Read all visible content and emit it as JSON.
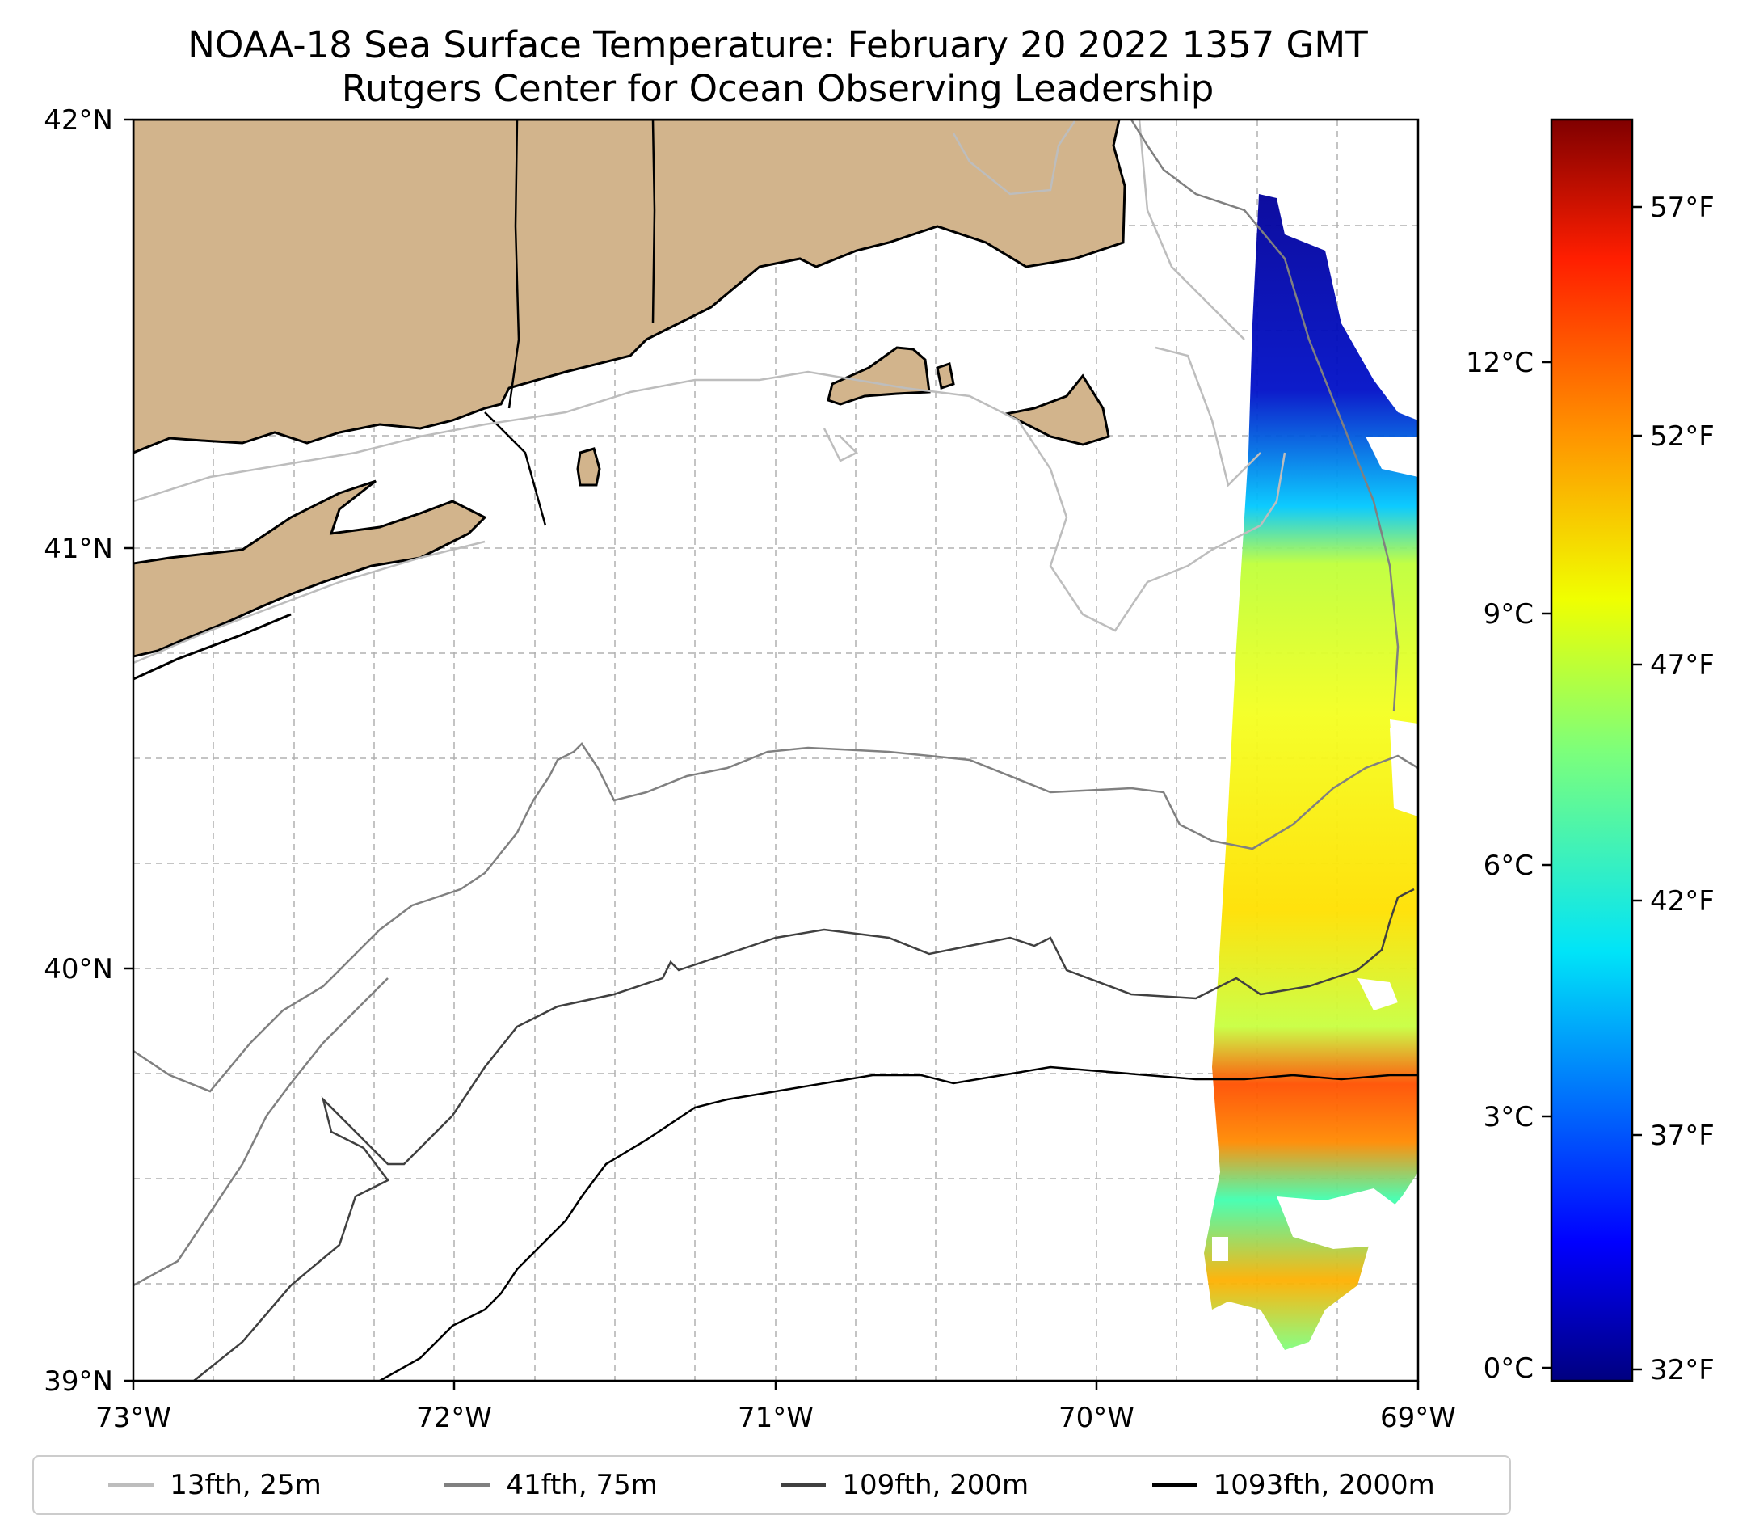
{
  "title": {
    "line1": "NOAA-18 Sea Surface Temperature: February 20 2022 1357 GMT",
    "line2": "Rutgers Center for Ocean Observing Leadership"
  },
  "map": {
    "lon_range": [
      -73,
      -69
    ],
    "lat_range": [
      39,
      42
    ],
    "land_color": "#d2b48c",
    "coast_color": "#000000",
    "grid": "dashed",
    "lat_ticks": [
      "42°N",
      "41°N",
      "40°N",
      "39°N"
    ],
    "lon_ticks": [
      "73°W",
      "72°W",
      "71°W",
      "70°W",
      "69°W"
    ]
  },
  "colorbar": {
    "colormap": "jet",
    "celsius_ticks": [
      "12°C",
      "9°C",
      "6°C",
      "3°C",
      "0°C"
    ],
    "fahrenheit_ticks": [
      "57°F",
      "52°F",
      "47°F",
      "42°F",
      "37°F",
      "32°F"
    ]
  },
  "legend": {
    "placement": "bottom",
    "items": [
      {
        "label": "13fth, 25m",
        "color": "#bdbdbd"
      },
      {
        "label": "41fth, 75m",
        "color": "#808080"
      },
      {
        "label": "109fth, 200m",
        "color": "#404040"
      },
      {
        "label": "1093fth, 2000m",
        "color": "#000000"
      }
    ]
  }
}
